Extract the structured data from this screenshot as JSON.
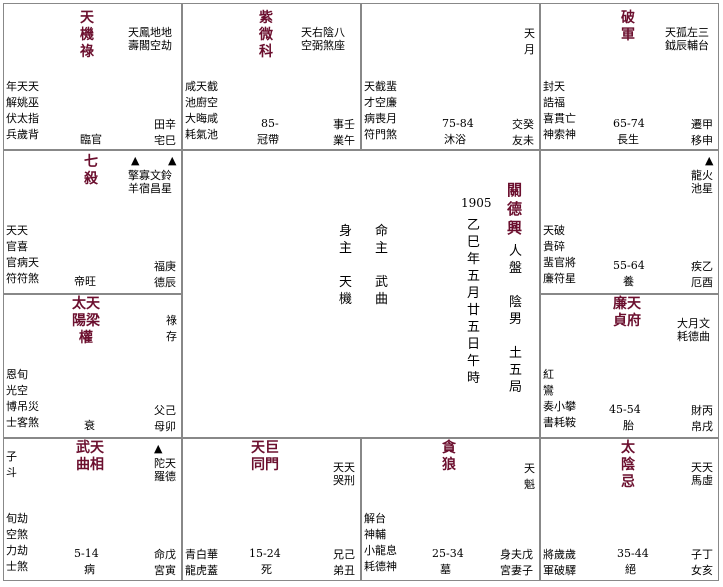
{
  "cells": {
    "si": {
      "main_stars": [
        "天機祿"
      ],
      "minor": [
        "天天",
        "鳳地地",
        "壽閣空劫"
      ],
      "left_rows": [
        "年天天",
        "解姚巫",
        "伏太指",
        "兵歲背"
      ],
      "ages": "",
      "stage": "臨官",
      "palace": [
        "田辛",
        "宅巳"
      ]
    },
    "wu": {
      "main_stars": [
        "紫微科"
      ],
      "minor": [
        "天右陰八",
        "空弼煞座"
      ],
      "left_rows": [
        "咸天截",
        "池廚空",
        "大晦咸",
        "耗氣池"
      ],
      "ages": "85-",
      "stage": "冠帶",
      "palace": [
        "事壬",
        "業午"
      ]
    },
    "wei": {
      "main_stars": [],
      "minor": [
        "天",
        "月"
      ],
      "left_rows": [
        "天截蜚",
        "才空廉",
        "病喪月",
        "符門煞"
      ],
      "ages": "75-84",
      "stage": "沐浴",
      "palace": [
        "交癸",
        "友未"
      ]
    },
    "shen": {
      "main_stars": [
        "破軍"
      ],
      "minor": [
        "天孤左三",
        "鉞辰輔台"
      ],
      "left_rows": [
        "封天",
        "誥福",
        "喜貫亡",
        "神索神"
      ],
      "ages": "65-74",
      "stage": "長生",
      "palace": [
        "遷甲",
        "移申"
      ]
    },
    "chen": {
      "main_stars": [
        "七殺"
      ],
      "minor": [
        "擎寡文鈴",
        "羊宿昌星"
      ],
      "left_rows": [
        "天天",
        "官喜",
        "官病天",
        "符符煞"
      ],
      "ages": "",
      "stage": "帝旺",
      "palace": [
        "福庚",
        "德辰"
      ]
    },
    "you": {
      "main_stars": [],
      "minor": [
        "龍火",
        "池星"
      ],
      "left_rows": [
        "天破",
        "貴碎",
        "蜚官將",
        "廉符星"
      ],
      "ages": "55-64",
      "stage": "養",
      "palace": [
        "疾乙",
        "厄酉"
      ]
    },
    "mao": {
      "main_stars": [
        "太天",
        "陽梁",
        "權"
      ],
      "minor": [
        "祿",
        "存"
      ],
      "left_rows": [
        "恩旬",
        "光空",
        "博吊災",
        "士客煞"
      ],
      "ages": "",
      "stage": "衰",
      "palace": [
        "父己",
        "母卯"
      ]
    },
    "xu": {
      "main_stars": [
        "廉天",
        "貞府"
      ],
      "minor": [
        "大月文",
        "耗德曲"
      ],
      "left_rows": [
        "紅",
        "鸞",
        "奏小攀",
        "書耗鞍"
      ],
      "ages": "45-54",
      "stage": "胎",
      "palace": [
        "財丙",
        "帛戌"
      ]
    },
    "yin": {
      "main_stars": [
        "武天",
        "曲相"
      ],
      "minor": [
        "陀天",
        "羅德"
      ],
      "left_rows": [
        "子",
        "斗",
        "旬劫",
        "空煞",
        "力劫",
        "士煞"
      ],
      "ages": "5-14",
      "stage": "病",
      "palace": [
        "命戊",
        "宮寅"
      ]
    },
    "chou": {
      "main_stars": [
        "天巨",
        "同門"
      ],
      "minor": [
        "天天",
        "哭刑"
      ],
      "left_rows": [
        "青白華",
        "龍虎蓋"
      ],
      "ages": "15-24",
      "stage": "死",
      "palace": [
        "兄己",
        "弟丑"
      ]
    },
    "zi": {
      "main_stars": [
        "貪狼"
      ],
      "minor": [
        "天",
        "魁"
      ],
      "left_rows": [
        "解台",
        "神輔",
        "小龍息",
        "耗德神"
      ],
      "ages": "25-34",
      "stage": "墓",
      "palace": [
        "身夫戊",
        "宮妻子"
      ]
    },
    "hai": {
      "main_stars": [
        "太陰忌"
      ],
      "minor": [
        "天天",
        "馬虛"
      ],
      "left_rows": [
        "將歲歲",
        "軍破驛"
      ],
      "ages": "35-44",
      "stage": "絕",
      "palace": [
        "子丁",
        "女亥"
      ]
    }
  },
  "center": {
    "year": "1905",
    "birth": "乙巳年五月廿五日午時",
    "name": "關德興",
    "gender_col": "人盤 陰男 土五局",
    "shen_zhu": "身主 天機",
    "ming_zhu": "命主 武曲"
  },
  "markers": [
    "▲"
  ],
  "colors": {
    "star": "#6b0f2e",
    "border": "#888888"
  }
}
